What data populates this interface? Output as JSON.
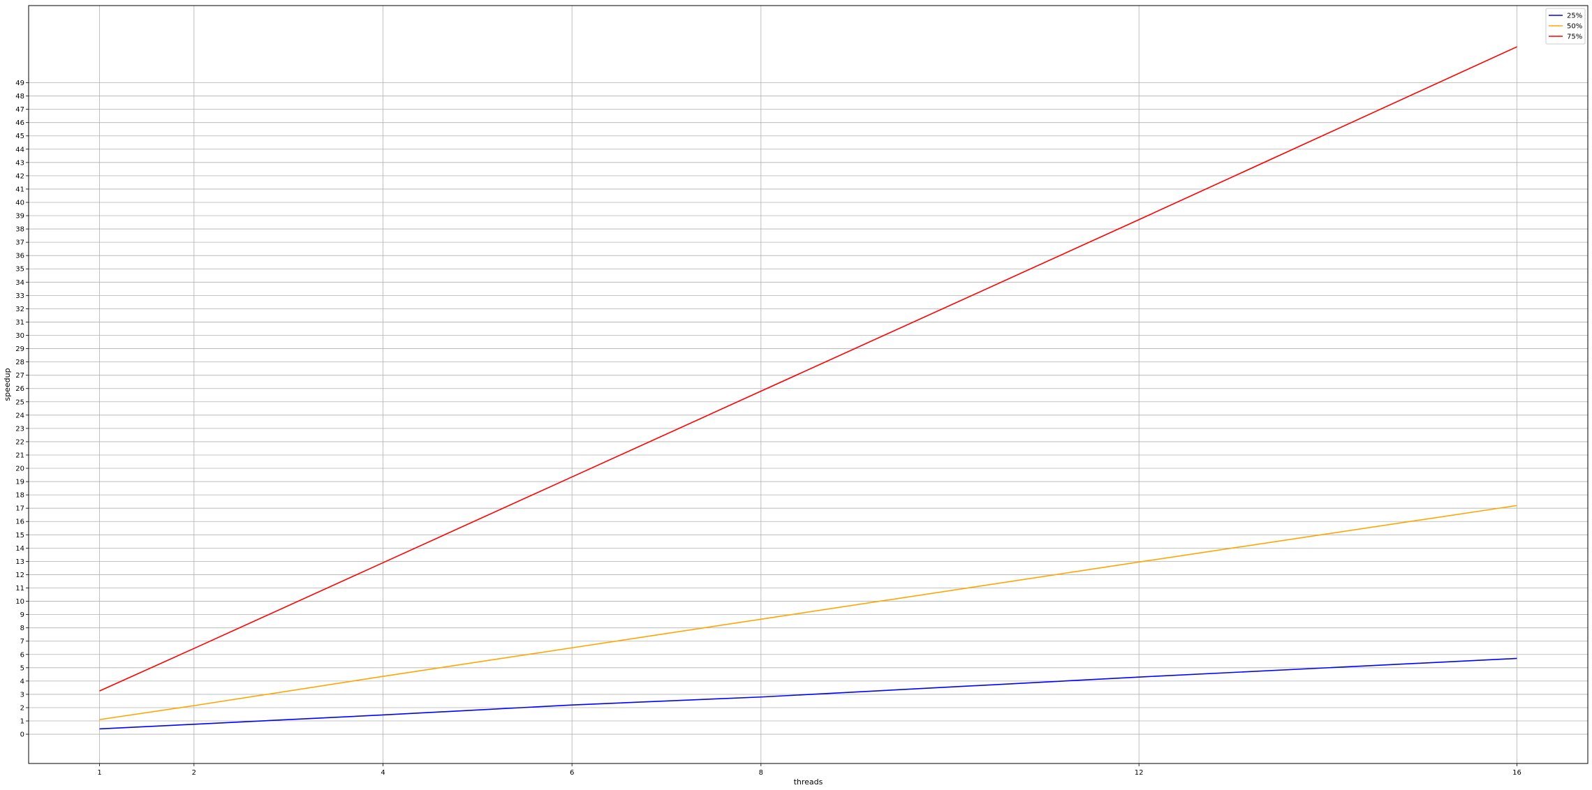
{
  "chart_data": {
    "type": "line",
    "title": "",
    "xlabel": "threads",
    "ylabel": "speedup",
    "x": [
      1,
      2,
      4,
      6,
      8,
      12,
      16
    ],
    "xticks": [
      1,
      2,
      4,
      6,
      8,
      12,
      16
    ],
    "xlim": [
      0.25,
      16.75
    ],
    "yticks": [
      0,
      1,
      2,
      3,
      4,
      5,
      6,
      7,
      8,
      9,
      10,
      11,
      12,
      13,
      14,
      15,
      16,
      17,
      18,
      19,
      20,
      21,
      22,
      23,
      24,
      25,
      26,
      27,
      28,
      29,
      30,
      31,
      32,
      33,
      34,
      35,
      36,
      37,
      38,
      39,
      40,
      41,
      42,
      43,
      44,
      45,
      46,
      47,
      48,
      49
    ],
    "ylim": [
      -2.2,
      54.8
    ],
    "grid": true,
    "legend_position": "top-right",
    "series": [
      {
        "name": "25%",
        "color": "#0000ff",
        "values": [
          0.4,
          0.75,
          1.45,
          2.2,
          2.8,
          4.3,
          5.7
        ]
      },
      {
        "name": "50%",
        "color": "#ffa500",
        "values": [
          1.1,
          2.15,
          4.35,
          6.5,
          8.65,
          12.95,
          17.2
        ]
      },
      {
        "name": "75%",
        "color": "#ff0000",
        "values": [
          3.25,
          6.45,
          12.9,
          19.35,
          25.8,
          38.7,
          51.7
        ]
      }
    ]
  }
}
